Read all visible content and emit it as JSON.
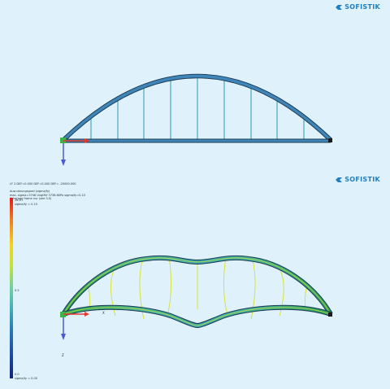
{
  "brand": {
    "name": "SOFISTIK"
  },
  "top_view": {
    "description_marks": "undeformed-structure"
  },
  "bottom_view": {
    "header_line": "LF 2 DEF=0.000 DEF=0.000 DEF= -20000.000",
    "legend_title": "Ausnutzungsgrad (sigma/fy)",
    "legend_sub1": "max. sigma=3746 Ungtfhf 3738.60Pa sigma/fy=0.10",
    "legend_sub2": "Achsrage frame nur (see 3.0)",
    "legend_top_value": "26.0+",
    "legend_top_sub": "sigma/fy = 0.10",
    "legend_mid_value": "0.5",
    "legend_bottom_value": "0.0",
    "legend_bottom_sub": "sigma/fy = 0.00",
    "axis_label_x": "X",
    "axis_label_z": "Z"
  },
  "colors": {
    "background": "#dff1fb",
    "member_blue": "#2f6e9e",
    "member_edge": "#1b3a52",
    "hanger": "#2a9bb5",
    "axis_x": "#e23a2e",
    "axis_z": "#4a5ad2",
    "node": "#3bb24a"
  }
}
